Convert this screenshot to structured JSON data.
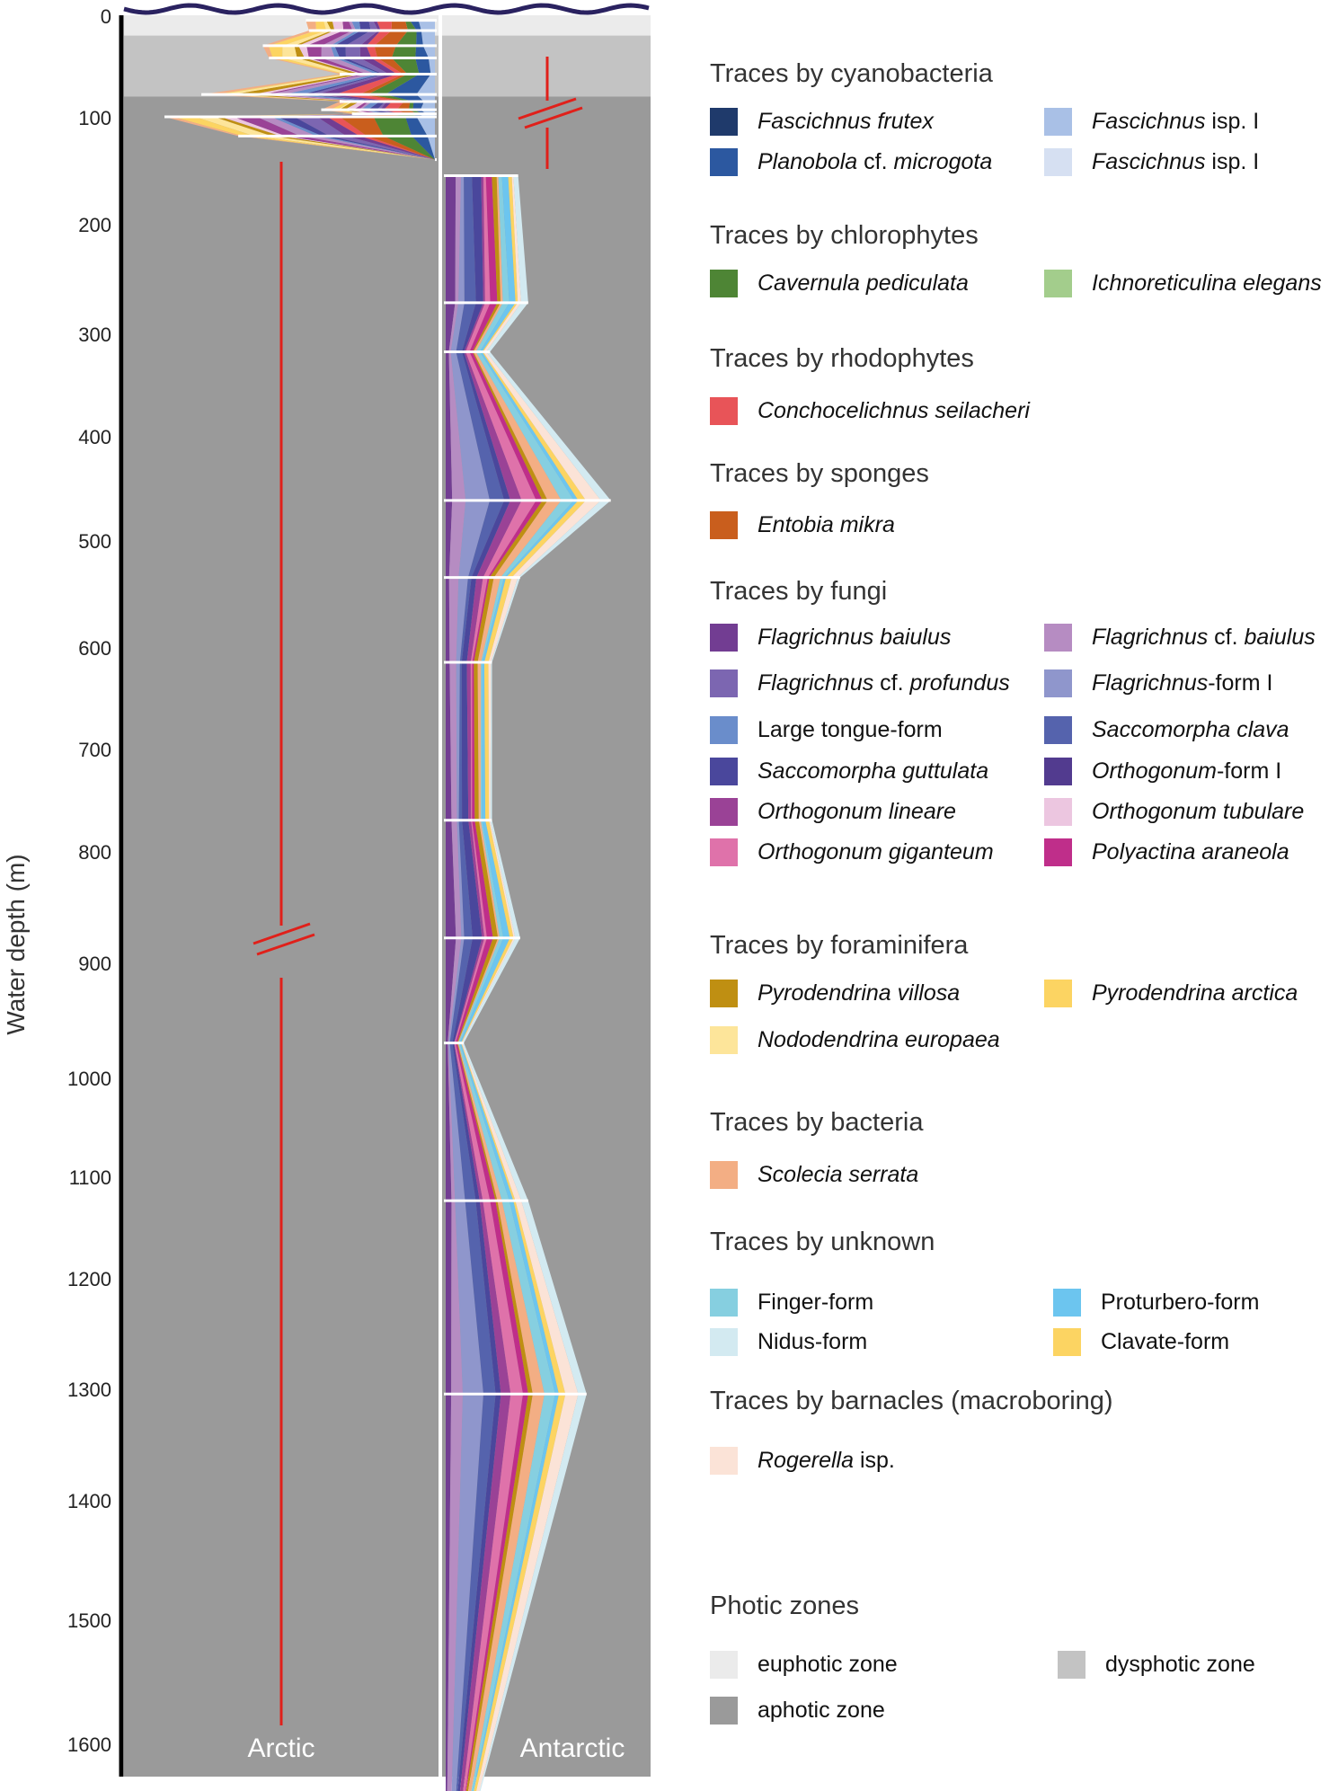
{
  "chart_data": {
    "type": "area",
    "title": "",
    "ylabel": "Water depth (m)",
    "ylim": [
      0,
      1640
    ],
    "y_axis_break": [
      80,
      150
    ],
    "y_ticks": [
      0,
      100,
      200,
      300,
      400,
      500,
      600,
      700,
      800,
      900,
      1000,
      1100,
      1200,
      1300,
      1400,
      1500,
      1600
    ],
    "panels": [
      {
        "name": "Arctic",
        "direction": "left",
        "sample_depths": [
          5,
          15,
          30,
          42,
          58,
          78,
          85,
          93,
          97,
          100,
          118,
          140
        ],
        "sample_totals_relative": [
          0.42,
          0.41,
          0.56,
          0.54,
          0.31,
          0.76,
          0.31,
          0.37,
          0.27,
          0.88,
          0.64,
          0.0
        ]
      },
      {
        "name": "Antarctic",
        "direction": "right",
        "sample_depths": [
          155,
          272,
          318,
          462,
          535,
          615,
          770,
          878,
          970,
          1124,
          1305,
          1640
        ],
        "sample_totals_relative": [
          0.36,
          0.41,
          0.22,
          0.82,
          0.37,
          0.23,
          0.23,
          0.37,
          0.09,
          0.41,
          0.7,
          0.17
        ]
      }
    ],
    "photic_zones": [
      {
        "name": "euphotic zone",
        "from": 0,
        "to": 20
      },
      {
        "name": "dysphotic zone",
        "from": 20,
        "to": 80
      },
      {
        "name": "aphotic zone",
        "from": 80,
        "to": 1640
      }
    ],
    "legend_groups": [
      {
        "title": "Traces by cyanobacteria",
        "items": [
          {
            "label": "Fascichnus frutex",
            "italic": "all",
            "color": "#1f3a6b"
          },
          {
            "label": "Fascichnus isp. I",
            "italic": "Fascichnus",
            "color": "#a9c0e6"
          },
          {
            "label": "Planobola cf. microgota",
            "italic": "mixed-cf",
            "color": "#2c58a0"
          },
          {
            "label": "Fascichnus isp. I",
            "italic": "Fascichnus",
            "color": "#d6e0f2"
          }
        ]
      },
      {
        "title": "Traces by chlorophytes",
        "items": [
          {
            "label": "Cavernula pediculata",
            "italic": "all",
            "color": "#4e8535"
          },
          {
            "label": "Ichnoreticulina elegans",
            "italic": "all",
            "color": "#a3cd8c"
          }
        ]
      },
      {
        "title": "Traces by rhodophytes",
        "items": [
          {
            "label": "Conchocelichnus seilacheri",
            "italic": "all",
            "color": "#e85458"
          }
        ]
      },
      {
        "title": "Traces by sponges",
        "items": [
          {
            "label": "Entobia mikra",
            "italic": "all",
            "color": "#c95e1d"
          }
        ]
      },
      {
        "title": "Traces by fungi",
        "items": [
          {
            "label": "Flagrichnus baiulus",
            "italic": "all",
            "color": "#723d92"
          },
          {
            "label": "Flagrichnus cf. baiulus",
            "italic": "mixed-cf",
            "color": "#b68cc2"
          },
          {
            "label": "Flagrichnus cf. profundus",
            "italic": "mixed-cf",
            "color": "#7c66b1"
          },
          {
            "label": "Flagrichnus-form I",
            "italic": "Flagrichnus",
            "color": "#8f96cc"
          },
          {
            "label": "Large tongue-form",
            "italic": "none",
            "color": "#6a8dcb"
          },
          {
            "label": "Saccomorpha clava",
            "italic": "all",
            "color": "#5563ad"
          },
          {
            "label": "Saccomorpha guttulata",
            "italic": "all",
            "color": "#4a479c"
          },
          {
            "label": "Orthogonum-form I",
            "italic": "Orthogonum",
            "color": "#523b8f"
          },
          {
            "label": "Orthogonum lineare",
            "italic": "all",
            "color": "#9a4296"
          },
          {
            "label": "Orthogonum tubulare",
            "italic": "all",
            "color": "#ecc6e0"
          },
          {
            "label": "Orthogonum giganteum",
            "italic": "all",
            "color": "#df72aa"
          },
          {
            "label": "Polyactina araneola",
            "italic": "all",
            "color": "#bf2e8a"
          }
        ]
      },
      {
        "title": "Traces by foraminifera",
        "items": [
          {
            "label": "Pyrodendrina villosa",
            "italic": "all",
            "color": "#bf8f12"
          },
          {
            "label": "Pyrodendrina arctica",
            "italic": "all",
            "color": "#fcd462"
          },
          {
            "label": "Nododendrina europaea",
            "italic": "all",
            "color": "#fde59a"
          }
        ]
      },
      {
        "title": "Traces by bacteria",
        "items": [
          {
            "label": "Scolecia serrata",
            "italic": "all",
            "color": "#f3ae84"
          }
        ]
      },
      {
        "title": "Traces by unknown",
        "items": [
          {
            "label": "Finger-form",
            "italic": "none",
            "color": "#86cfe0"
          },
          {
            "label": "Proturbero-form",
            "italic": "none",
            "color": "#6cc5ef"
          },
          {
            "label": "Nidus-form",
            "italic": "none",
            "color": "#d3eaf1"
          },
          {
            "label": "Clavate-form",
            "italic": "none",
            "color": "#fcd462"
          }
        ]
      },
      {
        "title": "Traces by barnacles (macroboring)",
        "items": [
          {
            "label": "Rogerella isp.",
            "italic": "Rogerella",
            "color": "#fbe3d7"
          }
        ]
      },
      {
        "title": "Photic zones",
        "items": [
          {
            "label": "euphotic zone",
            "italic": "none",
            "color": "#ebebeb"
          },
          {
            "label": "dysphotic zone",
            "italic": "none",
            "color": "#c3c3c3"
          },
          {
            "label": "aphotic zone",
            "italic": "none",
            "color": "#9a9a9a"
          }
        ]
      }
    ]
  },
  "colors": {
    "sea_surface": "#2a2260",
    "axis": "#000000",
    "break_marks": "#e0201a",
    "divider": "#ffffff"
  }
}
